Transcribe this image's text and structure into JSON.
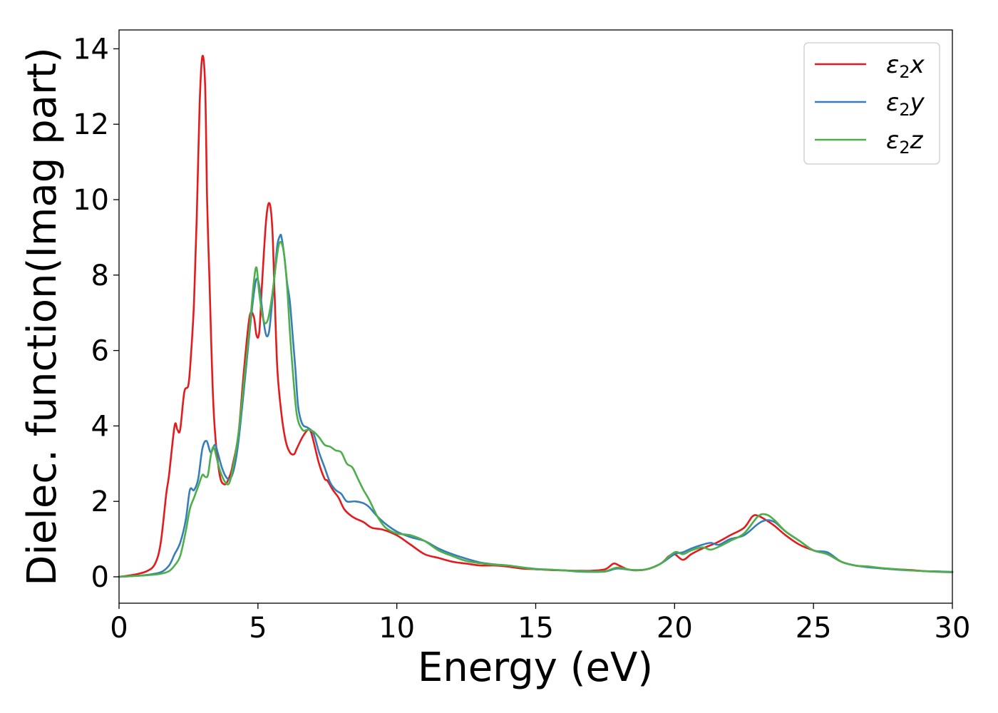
{
  "chart_data": {
    "type": "line",
    "title": "",
    "xlabel": "Energy (eV)",
    "ylabel": "Dielec. function(Imag part)",
    "xlim": [
      0,
      30
    ],
    "ylim": [
      -0.7,
      14.5
    ],
    "xticks": [
      0,
      5,
      10,
      15,
      20,
      25,
      30
    ],
    "yticks": [
      0,
      2,
      4,
      6,
      8,
      10,
      12,
      14
    ],
    "xtick_labels": [
      "0",
      "5",
      "10",
      "15",
      "20",
      "25",
      "30"
    ],
    "ytick_labels": [
      "0",
      "2",
      "4",
      "6",
      "8",
      "10",
      "12",
      "14"
    ],
    "grid": false,
    "legend_position": "top-right",
    "series": [
      {
        "name": "ε₂x",
        "legend_base": "ε",
        "legend_sub": "2",
        "legend_suffix": "x",
        "color": "#e41a1c",
        "x": [
          0,
          0.5,
          1.0,
          1.3,
          1.5,
          1.7,
          1.8,
          2.0,
          2.1,
          2.2,
          2.35,
          2.5,
          2.6,
          2.7,
          2.8,
          2.9,
          3.0,
          3.1,
          3.17,
          3.25,
          3.4,
          3.6,
          3.8,
          4.0,
          4.1,
          4.3,
          4.5,
          4.7,
          4.85,
          4.95,
          5.05,
          5.15,
          5.3,
          5.42,
          5.52,
          5.6,
          5.7,
          5.85,
          6.0,
          6.15,
          6.3,
          6.4,
          6.6,
          6.8,
          6.9,
          7.0,
          7.2,
          7.4,
          7.5,
          7.7,
          7.9,
          8.1,
          8.3,
          8.5,
          8.8,
          9.1,
          9.5,
          10.0,
          10.5,
          11.0,
          11.5,
          12.0,
          12.5,
          13.0,
          13.5,
          14.0,
          14.5,
          15.0,
          15.5,
          16.0,
          16.5,
          17.0,
          17.5,
          17.8,
          18.0,
          18.3,
          18.6,
          19.0,
          19.5,
          19.8,
          20.0,
          20.3,
          20.6,
          21.0,
          21.5,
          22.0,
          22.5,
          22.8,
          23.0,
          23.3,
          23.6,
          24.0,
          24.5,
          25.0,
          25.5,
          26.0,
          26.5,
          27.0,
          27.5,
          28.0,
          28.5,
          29.0,
          29.5,
          30.0
        ],
        "y": [
          0.0,
          0.05,
          0.15,
          0.35,
          0.9,
          2.2,
          2.7,
          4.0,
          3.9,
          3.9,
          4.9,
          5.1,
          6.0,
          7.3,
          9.6,
          12.5,
          13.8,
          13.0,
          10.0,
          8.0,
          4.5,
          2.8,
          2.45,
          2.7,
          3.0,
          3.8,
          5.5,
          6.9,
          6.9,
          6.4,
          6.5,
          7.8,
          9.5,
          9.9,
          9.2,
          7.5,
          5.5,
          4.3,
          3.6,
          3.3,
          3.25,
          3.4,
          3.7,
          3.9,
          3.85,
          3.6,
          3.0,
          2.6,
          2.55,
          2.3,
          2.1,
          1.8,
          1.65,
          1.55,
          1.45,
          1.3,
          1.25,
          1.1,
          0.85,
          0.6,
          0.5,
          0.4,
          0.35,
          0.3,
          0.3,
          0.27,
          0.22,
          0.2,
          0.18,
          0.17,
          0.16,
          0.16,
          0.2,
          0.35,
          0.3,
          0.2,
          0.17,
          0.2,
          0.35,
          0.55,
          0.6,
          0.45,
          0.6,
          0.75,
          0.9,
          1.1,
          1.3,
          1.6,
          1.62,
          1.5,
          1.35,
          1.1,
          0.85,
          0.7,
          0.6,
          0.4,
          0.3,
          0.27,
          0.22,
          0.2,
          0.18,
          0.15,
          0.14,
          0.12
        ]
      },
      {
        "name": "ε₂y",
        "legend_base": "ε",
        "legend_sub": "2",
        "legend_suffix": "y",
        "color": "#377eb8",
        "x": [
          0,
          0.5,
          1.0,
          1.5,
          1.8,
          2.0,
          2.2,
          2.4,
          2.55,
          2.7,
          2.85,
          3.0,
          3.15,
          3.3,
          3.45,
          3.55,
          3.7,
          3.85,
          4.0,
          4.15,
          4.3,
          4.5,
          4.7,
          4.85,
          4.95,
          5.05,
          5.2,
          5.3,
          5.4,
          5.5,
          5.6,
          5.7,
          5.8,
          5.85,
          5.95,
          6.05,
          6.15,
          6.25,
          6.35,
          6.45,
          6.6,
          6.8,
          7.0,
          7.2,
          7.4,
          7.6,
          7.8,
          8.0,
          8.2,
          8.5,
          8.8,
          9.0,
          9.3,
          9.6,
          10.0,
          10.5,
          11.0,
          11.5,
          12.0,
          12.5,
          13.0,
          13.5,
          14.0,
          14.5,
          15.0,
          15.5,
          16.0,
          16.5,
          17.0,
          17.5,
          17.8,
          18.0,
          18.5,
          19.0,
          19.5,
          20.0,
          20.3,
          20.6,
          21.0,
          21.3,
          21.6,
          22.0,
          22.5,
          23.0,
          23.3,
          23.6,
          24.0,
          24.5,
          25.0,
          25.5,
          26.0,
          26.5,
          27.0,
          27.5,
          28.0,
          28.5,
          29.0,
          29.5,
          30.0
        ],
        "y": [
          0.0,
          0.02,
          0.05,
          0.12,
          0.3,
          0.6,
          0.9,
          1.5,
          2.3,
          2.3,
          2.6,
          3.4,
          3.6,
          3.3,
          3.5,
          3.3,
          2.9,
          2.65,
          2.6,
          2.9,
          3.6,
          5.0,
          6.5,
          7.5,
          7.9,
          7.7,
          6.8,
          6.4,
          6.5,
          7.2,
          8.0,
          8.8,
          9.05,
          9.0,
          8.5,
          7.8,
          7.3,
          6.4,
          5.5,
          4.5,
          4.05,
          3.95,
          3.8,
          3.3,
          2.9,
          2.5,
          2.3,
          2.2,
          2.0,
          2.0,
          1.95,
          1.85,
          1.6,
          1.4,
          1.2,
          1.05,
          0.95,
          0.75,
          0.6,
          0.48,
          0.38,
          0.33,
          0.3,
          0.25,
          0.21,
          0.19,
          0.17,
          0.14,
          0.13,
          0.14,
          0.2,
          0.22,
          0.18,
          0.2,
          0.35,
          0.6,
          0.65,
          0.75,
          0.85,
          0.9,
          0.85,
          1.0,
          1.1,
          1.4,
          1.5,
          1.45,
          1.2,
          0.95,
          0.7,
          0.65,
          0.4,
          0.3,
          0.25,
          0.22,
          0.19,
          0.17,
          0.15,
          0.14,
          0.13
        ]
      },
      {
        "name": "ε₂z",
        "legend_base": "ε",
        "legend_sub": "2",
        "legend_suffix": "z",
        "color": "#4daf4a",
        "x": [
          0,
          0.5,
          1.0,
          1.5,
          1.8,
          2.0,
          2.2,
          2.4,
          2.55,
          2.7,
          2.85,
          3.0,
          3.1,
          3.2,
          3.3,
          3.4,
          3.5,
          3.6,
          3.75,
          3.9,
          4.0,
          4.1,
          4.3,
          4.5,
          4.7,
          4.85,
          4.95,
          5.05,
          5.2,
          5.35,
          5.5,
          5.65,
          5.75,
          5.85,
          5.95,
          6.05,
          6.15,
          6.25,
          6.4,
          6.6,
          6.8,
          7.0,
          7.2,
          7.4,
          7.6,
          7.8,
          8.0,
          8.2,
          8.4,
          8.6,
          8.8,
          9.0,
          9.3,
          9.6,
          10.0,
          10.5,
          11.0,
          11.5,
          12.0,
          12.5,
          13.0,
          13.5,
          14.0,
          14.5,
          15.0,
          15.5,
          16.0,
          16.5,
          17.0,
          17.5,
          17.8,
          18.0,
          18.5,
          19.0,
          19.5,
          20.0,
          20.3,
          20.6,
          21.0,
          21.3,
          21.6,
          22.0,
          22.5,
          23.0,
          23.3,
          23.6,
          24.0,
          24.5,
          25.0,
          25.5,
          26.0,
          26.5,
          27.0,
          27.5,
          28.0,
          28.5,
          29.0,
          29.5,
          30.0
        ],
        "y": [
          0.0,
          0.02,
          0.04,
          0.08,
          0.15,
          0.3,
          0.55,
          1.2,
          1.8,
          2.1,
          2.4,
          2.7,
          2.65,
          2.7,
          3.2,
          3.45,
          3.2,
          2.9,
          2.6,
          2.45,
          2.55,
          2.9,
          3.8,
          5.2,
          6.6,
          7.8,
          8.2,
          7.5,
          6.8,
          6.8,
          7.4,
          8.3,
          8.8,
          8.85,
          8.5,
          7.7,
          6.5,
          5.5,
          4.3,
          3.9,
          3.9,
          3.85,
          3.7,
          3.5,
          3.45,
          3.35,
          3.3,
          3.0,
          2.9,
          2.6,
          2.3,
          2.05,
          1.6,
          1.3,
          1.15,
          1.1,
          0.95,
          0.7,
          0.55,
          0.42,
          0.36,
          0.32,
          0.3,
          0.25,
          0.2,
          0.19,
          0.17,
          0.15,
          0.14,
          0.15,
          0.22,
          0.24,
          0.18,
          0.2,
          0.35,
          0.65,
          0.6,
          0.7,
          0.78,
          0.72,
          0.8,
          0.95,
          1.15,
          1.6,
          1.65,
          1.5,
          1.2,
          0.95,
          0.7,
          0.6,
          0.4,
          0.3,
          0.27,
          0.23,
          0.2,
          0.17,
          0.15,
          0.13,
          0.12
        ]
      }
    ]
  }
}
